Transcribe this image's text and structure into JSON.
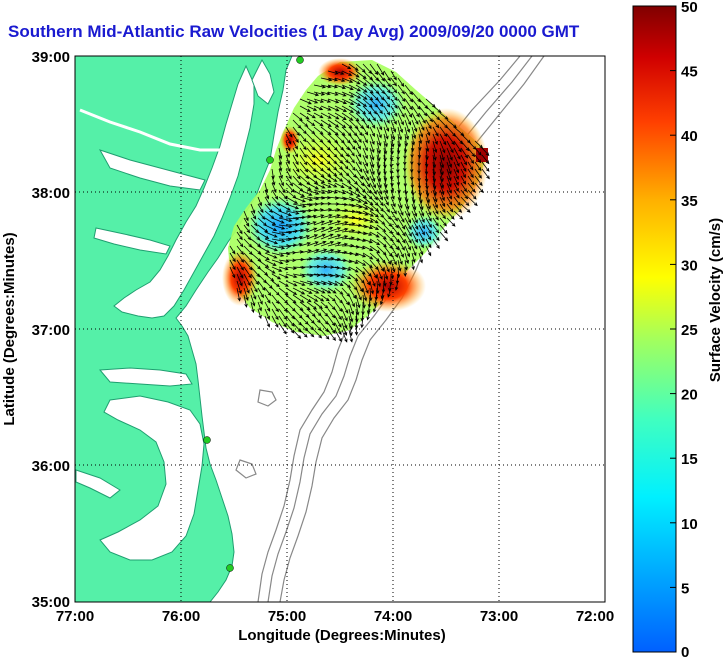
{
  "title": "Southern Mid-Atlantic Raw Velocities (1 Day Avg) 2009/09/20 0000 GMT",
  "x_axis": {
    "label": "Longitude (Degrees:Minutes)",
    "ticks": [
      "77:00",
      "76:00",
      "75:00",
      "74:00",
      "73:00",
      "72:00"
    ],
    "range": [
      -77,
      -72
    ]
  },
  "y_axis": {
    "label": "Latitude (Degrees:Minutes)",
    "ticks": [
      "39:00",
      "38:00",
      "37:00",
      "36:00",
      "35:00"
    ],
    "range": [
      35,
      39
    ]
  },
  "colorbar": {
    "label": "Surface Velocity (cm/s)",
    "ticks": [
      "50",
      "45",
      "40",
      "35",
      "30",
      "25",
      "20",
      "15",
      "10",
      "5",
      "0"
    ],
    "range": [
      0,
      50
    ],
    "colormap": "jet"
  },
  "colors": {
    "land": "#55f0a8",
    "coast": "#1f9f70",
    "bathymetry": "#888888",
    "grid": "#000000",
    "station": "#22cc22",
    "vectors": "#000000"
  },
  "grid": "dotted"
}
